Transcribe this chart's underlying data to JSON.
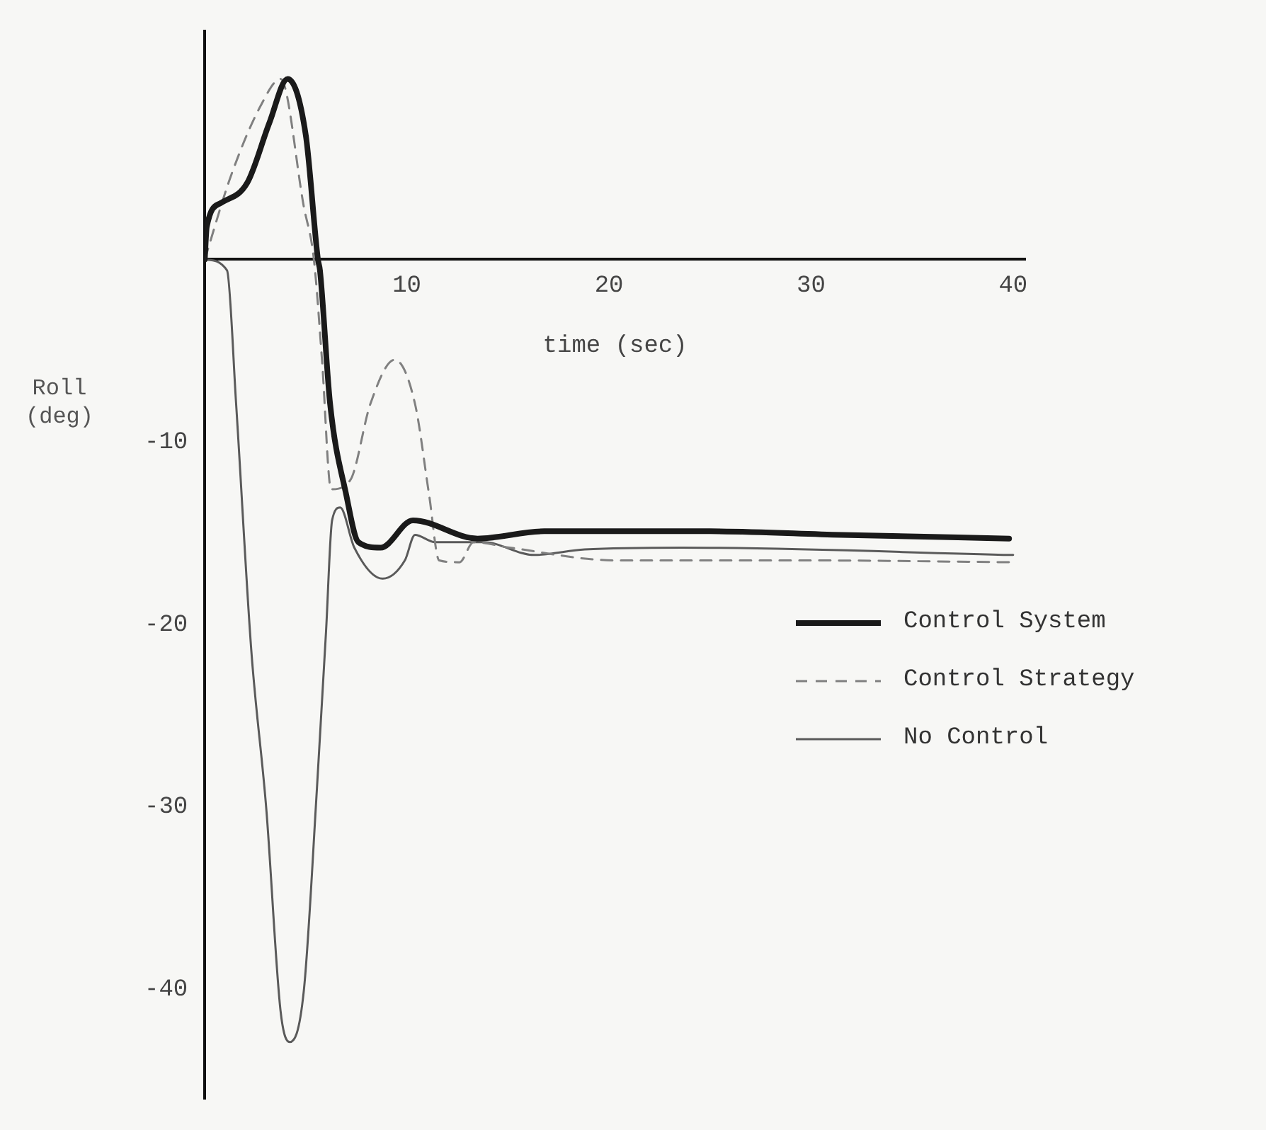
{
  "chart_data": {
    "type": "line",
    "xlabel": "time (sec)",
    "ylabel": "Roll (deg)",
    "xlim": [
      0,
      40.6
    ],
    "ylim": [
      -46,
      12.5
    ],
    "xticks": [
      10,
      20,
      30,
      40
    ],
    "yticks": [
      -40,
      -30,
      -20,
      -10
    ],
    "grid": false,
    "legend": "right",
    "marker": "none",
    "series": [
      {
        "name": "Control System",
        "color": "#1a1a1a",
        "line_style": "solid",
        "x": [
          0,
          0.1,
          0.8,
          2.1,
          3.2,
          4.1,
          5.0,
          5.6,
          5.7,
          6.2,
          7.0,
          7.6,
          8.7,
          10.3,
          13.5,
          16.8,
          25,
          31.5,
          39.8
        ],
        "values": [
          0,
          1.8,
          3.1,
          4.2,
          7.5,
          9.9,
          6.8,
          0,
          -0.6,
          -7.9,
          -12.9,
          -15.5,
          -15.8,
          -14.3,
          -15.3,
          -14.9,
          -14.9,
          -15.1,
          -15.3
        ]
      },
      {
        "name": "Control Strategy",
        "color": "#808080",
        "line_style": "dashed",
        "x": [
          0,
          1.3,
          2.8,
          3.75,
          4.9,
          5.4,
          5.8,
          6.25,
          7.2,
          8.2,
          9.4,
          10.4,
          11.1,
          11.6,
          12.6,
          13.3,
          15.1,
          20.4,
          30,
          40
        ],
        "values": [
          0,
          4.6,
          8.5,
          9.9,
          2.9,
          0,
          -5.5,
          -12.6,
          -12.1,
          -7.9,
          -5.5,
          -7.9,
          -12.9,
          -16.5,
          -16.6,
          -15.5,
          -15.8,
          -16.5,
          -16.5,
          -16.6
        ]
      },
      {
        "name": "No Control",
        "color": "#5a5a5a",
        "line_style": "solid",
        "x": [
          0,
          1.1,
          1.55,
          2.3,
          3.05,
          3.75,
          4.2,
          4.9,
          5.55,
          6.0,
          6.3,
          6.7,
          7.4,
          8.8,
          9.9,
          10.4,
          11.4,
          12.6,
          13.8,
          16.3,
          18.8,
          23.6,
          40
        ],
        "values": [
          0,
          -0.6,
          -7.9,
          -21.4,
          -30.2,
          -41.2,
          -42.9,
          -40.1,
          -29,
          -20.4,
          -14.3,
          -13.6,
          -15.8,
          -17.5,
          -16.5,
          -15.1,
          -15.5,
          -15.5,
          -15.5,
          -16.2,
          -15.9,
          -15.8,
          -16.2
        ]
      }
    ]
  }
}
